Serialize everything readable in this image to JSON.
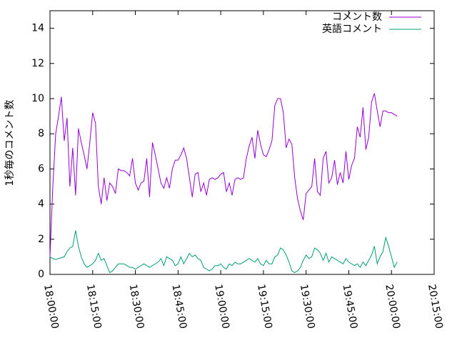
{
  "chart_data": {
    "type": "line",
    "ylabel": "1秒毎のコメント数",
    "x": [
      "18:00:00",
      "18:01:00",
      "18:02:00",
      "18:03:00",
      "18:04:00",
      "18:05:00",
      "18:06:00",
      "18:07:00",
      "18:08:00",
      "18:09:00",
      "18:10:00",
      "18:11:00",
      "18:12:00",
      "18:13:00",
      "18:14:00",
      "18:15:00",
      "18:16:00",
      "18:17:00",
      "18:18:00",
      "18:19:00",
      "18:20:00",
      "18:21:00",
      "18:22:00",
      "18:23:00",
      "18:24:00",
      "18:25:00",
      "18:26:00",
      "18:27:00",
      "18:28:00",
      "18:29:00",
      "18:30:00",
      "18:31:00",
      "18:32:00",
      "18:33:00",
      "18:34:00",
      "18:35:00",
      "18:36:00",
      "18:37:00",
      "18:38:00",
      "18:39:00",
      "18:40:00",
      "18:41:00",
      "18:42:00",
      "18:43:00",
      "18:44:00",
      "18:45:00",
      "18:46:00",
      "18:47:00",
      "18:48:00",
      "18:49:00",
      "18:50:00",
      "18:51:00",
      "18:52:00",
      "18:53:00",
      "18:54:00",
      "18:55:00",
      "18:56:00",
      "18:57:00",
      "18:58:00",
      "18:59:00",
      "19:00:00",
      "19:01:00",
      "19:02:00",
      "19:03:00",
      "19:04:00",
      "19:05:00",
      "19:06:00",
      "19:07:00",
      "19:08:00",
      "19:09:00",
      "19:10:00",
      "19:11:00",
      "19:12:00",
      "19:13:00",
      "19:14:00",
      "19:15:00",
      "19:16:00",
      "19:17:00",
      "19:18:00",
      "19:19:00",
      "19:20:00",
      "19:21:00",
      "19:22:00",
      "19:23:00",
      "19:24:00",
      "19:25:00",
      "19:26:00",
      "19:27:00",
      "19:28:00",
      "19:29:00",
      "19:30:00",
      "19:31:00",
      "19:32:00",
      "19:33:00",
      "19:34:00",
      "19:35:00",
      "19:36:00",
      "19:37:00",
      "19:38:00",
      "19:39:00",
      "19:40:00",
      "19:41:00",
      "19:42:00",
      "19:43:00",
      "19:44:00",
      "19:45:00",
      "19:46:00",
      "19:47:00",
      "19:48:00",
      "19:49:00",
      "19:50:00",
      "19:51:00",
      "19:52:00",
      "19:53:00",
      "19:54:00",
      "19:55:00",
      "19:56:00",
      "19:57:00",
      "19:58:00",
      "19:59:00",
      "20:00:00",
      "20:01:00",
      "20:02:00"
    ],
    "series": [
      {
        "name": "コメント数",
        "color": "#9400d3",
        "values": [
          1.0,
          5.0,
          8.0,
          9.0,
          10.1,
          7.6,
          8.9,
          5.0,
          7.2,
          4.5,
          8.3,
          7.5,
          6.8,
          6.0,
          7.5,
          9.2,
          8.6,
          5.0,
          4.0,
          5.5,
          4.2,
          5.2,
          5.0,
          4.6,
          6.0,
          5.9,
          5.9,
          5.8,
          5.6,
          6.6,
          5.2,
          4.8,
          5.2,
          5.3,
          6.6,
          4.4,
          7.5,
          6.8,
          6.0,
          5.2,
          4.9,
          5.5,
          4.9,
          6.0,
          6.5,
          6.5,
          6.8,
          7.2,
          6.6,
          5.5,
          4.4,
          5.7,
          5.8,
          4.7,
          5.2,
          4.5,
          5.4,
          5.5,
          5.4,
          5.5,
          5.7,
          5.8,
          4.7,
          5.2,
          4.5,
          5.4,
          5.5,
          5.4,
          5.5,
          6.6,
          7.3,
          7.8,
          6.6,
          8.2,
          7.4,
          6.8,
          6.7,
          7.1,
          7.6,
          9.6,
          10.0,
          10.0,
          9.2,
          7.2,
          7.7,
          7.4,
          5.5,
          4.3,
          3.6,
          3.1,
          4.6,
          4.8,
          5.0,
          6.6,
          4.7,
          4.5,
          6.6,
          7.0,
          5.2,
          5.5,
          6.5,
          5.1,
          5.8,
          5.2,
          7.0,
          5.4,
          6.2,
          6.6,
          8.4,
          7.8,
          9.5,
          7.1,
          7.8,
          9.8,
          10.3,
          9.3,
          8.4,
          9.3,
          9.3,
          9.2,
          9.2,
          9.1,
          9.0
        ]
      },
      {
        "name": "英語コメント",
        "color": "#009e73",
        "values": [
          1.0,
          0.9,
          0.85,
          0.9,
          0.95,
          1.0,
          1.3,
          1.5,
          1.6,
          2.5,
          1.6,
          1.0,
          0.6,
          0.4,
          0.5,
          0.6,
          0.8,
          1.2,
          0.8,
          0.9,
          0.5,
          0.1,
          0.2,
          0.4,
          0.6,
          0.6,
          0.6,
          0.5,
          0.4,
          0.4,
          0.3,
          0.4,
          0.5,
          0.6,
          0.5,
          0.4,
          0.5,
          0.6,
          0.7,
          0.9,
          0.5,
          1.0,
          0.9,
          0.8,
          0.5,
          0.6,
          1.0,
          0.6,
          0.9,
          1.2,
          1.0,
          1.1,
          0.9,
          0.8,
          0.4,
          0.3,
          0.2,
          0.3,
          0.5,
          0.5,
          0.6,
          0.4,
          0.3,
          0.6,
          0.5,
          0.7,
          0.6,
          0.6,
          0.7,
          0.8,
          0.9,
          0.8,
          0.7,
          0.9,
          0.6,
          0.5,
          0.8,
          0.6,
          0.6,
          1.0,
          1.1,
          1.5,
          1.4,
          1.1,
          0.7,
          0.2,
          0.1,
          0.2,
          0.4,
          0.8,
          1.1,
          0.9,
          1.0,
          1.5,
          1.4,
          1.2,
          0.8,
          1.2,
          0.7,
          1.0,
          0.9,
          0.8,
          0.7,
          0.6,
          0.9,
          0.7,
          0.6,
          0.5,
          0.6,
          0.4,
          0.7,
          0.5,
          0.8,
          1.1,
          1.6,
          0.6,
          1.0,
          1.3,
          2.1,
          1.6,
          1.0,
          0.4,
          0.7
        ]
      }
    ],
    "xlim": [
      "18:00:00",
      "20:15:00"
    ],
    "xticks": [
      "18:00:00",
      "18:15:00",
      "18:30:00",
      "18:45:00",
      "19:00:00",
      "19:15:00",
      "19:30:00",
      "19:45:00",
      "20:00:00",
      "20:15:00"
    ],
    "ylim": [
      0,
      15
    ],
    "yticks": [
      0,
      2,
      4,
      6,
      8,
      10,
      12,
      14
    ],
    "legend": "top-right",
    "grid": false
  }
}
